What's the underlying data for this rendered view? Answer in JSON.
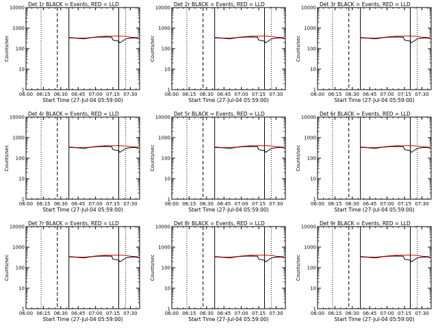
{
  "chart_data": [
    {
      "type": "line",
      "title": "Det 1r BLACK = Events, RED = LLD",
      "xlabel": "Start Time (27-Jul-04 05:59:00)",
      "ylabel": "Counts/sec",
      "y_scale": "log",
      "ylim": [
        1,
        10000
      ],
      "y_tick_labels": [
        "1",
        "10",
        "100",
        "1000",
        "10000"
      ],
      "x_tick_labels": [
        "06:00",
        "06:15",
        "06:30",
        "06:45",
        "07:00",
        "07:15",
        "07:30"
      ],
      "x_minutes": [
        0,
        15,
        30,
        45,
        60,
        75,
        90
      ],
      "xlim_minutes": [
        0,
        98
      ],
      "vertical_lines": [
        {
          "style": "dotted",
          "minute": 13
        },
        {
          "style": "dashed",
          "minute": 27
        },
        {
          "style": "solid",
          "minute": 37
        },
        {
          "style": "solid",
          "minute": 80
        },
        {
          "style": "dotted",
          "minute": 86
        }
      ],
      "series": [
        {
          "color": "#000000",
          "x_minutes": [
            37,
            43,
            50,
            56,
            62,
            68,
            74,
            75,
            80,
            81,
            86,
            90,
            94,
            97
          ],
          "values": [
            330,
            320,
            300,
            340,
            360,
            370,
            360,
            260,
            230,
            190,
            300,
            320,
            330,
            310
          ]
        },
        {
          "color": "#cc0000",
          "x_minutes": [
            37,
            43,
            50,
            56,
            62,
            68,
            74,
            80,
            86,
            90,
            94,
            97
          ],
          "values": [
            350,
            330,
            320,
            350,
            380,
            400,
            400,
            410,
            390,
            360,
            350,
            340
          ]
        }
      ]
    },
    {
      "type": "line",
      "title": "Det 2r BLACK = Events, RED = LLD",
      "xlabel": "Start Time (27-Jul-04 05:59:00)",
      "ylabel": "Counts/sec",
      "y_scale": "log",
      "ylim": [
        1,
        10000
      ],
      "y_tick_labels": [
        "1",
        "10",
        "100",
        "1000",
        "10000"
      ],
      "x_tick_labels": [
        "06:00",
        "06:15",
        "06:30",
        "06:45",
        "07:00",
        "07:15",
        "07:30"
      ],
      "x_minutes": [
        0,
        15,
        30,
        45,
        60,
        75,
        90
      ],
      "xlim_minutes": [
        0,
        98
      ],
      "vertical_lines": [
        {
          "style": "dotted",
          "minute": 13
        },
        {
          "style": "dashed",
          "minute": 27
        },
        {
          "style": "solid",
          "minute": 37
        },
        {
          "style": "solid",
          "minute": 80
        },
        {
          "style": "dotted",
          "minute": 86
        }
      ],
      "series": [
        {
          "color": "#000000",
          "x_minutes": [
            37,
            43,
            50,
            56,
            62,
            68,
            74,
            75,
            80,
            81,
            86,
            90,
            94,
            97
          ],
          "values": [
            330,
            320,
            300,
            340,
            360,
            370,
            360,
            260,
            230,
            190,
            300,
            320,
            330,
            310
          ]
        },
        {
          "color": "#cc0000",
          "x_minutes": [
            37,
            43,
            50,
            56,
            62,
            68,
            74,
            80,
            86,
            90,
            94,
            97
          ],
          "values": [
            350,
            330,
            320,
            350,
            380,
            400,
            400,
            410,
            390,
            360,
            350,
            340
          ]
        }
      ]
    },
    {
      "type": "line",
      "title": "Det 3r BLACK = Events, RED = LLD",
      "xlabel": "Start Time (27-Jul-04 05:59:00)",
      "ylabel": "Counts/sec",
      "y_scale": "log",
      "ylim": [
        1,
        10000
      ],
      "y_tick_labels": [
        "1",
        "10",
        "100",
        "1000",
        "10000"
      ],
      "x_tick_labels": [
        "06:00",
        "06:15",
        "06:30",
        "06:45",
        "07:00",
        "07:15",
        "07:30"
      ],
      "x_minutes": [
        0,
        15,
        30,
        45,
        60,
        75,
        90
      ],
      "xlim_minutes": [
        0,
        98
      ],
      "vertical_lines": [
        {
          "style": "dotted",
          "minute": 13
        },
        {
          "style": "dashed",
          "minute": 27
        },
        {
          "style": "solid",
          "minute": 37
        },
        {
          "style": "solid",
          "minute": 80
        },
        {
          "style": "dotted",
          "minute": 86
        }
      ],
      "series": [
        {
          "color": "#000000",
          "x_minutes": [
            37,
            43,
            50,
            56,
            62,
            68,
            74,
            75,
            80,
            81,
            86,
            90,
            94,
            97
          ],
          "values": [
            330,
            320,
            300,
            340,
            360,
            370,
            360,
            260,
            230,
            190,
            300,
            320,
            330,
            310
          ]
        },
        {
          "color": "#cc0000",
          "x_minutes": [
            37,
            43,
            50,
            56,
            62,
            68,
            74,
            80,
            86,
            90,
            94,
            97
          ],
          "values": [
            350,
            330,
            320,
            350,
            380,
            400,
            400,
            410,
            390,
            360,
            350,
            340
          ]
        }
      ]
    },
    {
      "type": "line",
      "title": "Det 4r BLACK = Events, RED = LLD",
      "xlabel": "Start Time (27-Jul-04 05:59:00)",
      "ylabel": "Counts/sec",
      "y_scale": "log",
      "ylim": [
        1,
        10000
      ],
      "y_tick_labels": [
        "1",
        "10",
        "100",
        "1000",
        "10000"
      ],
      "x_tick_labels": [
        "06:00",
        "06:15",
        "06:30",
        "06:45",
        "07:00",
        "07:15",
        "07:30"
      ],
      "x_minutes": [
        0,
        15,
        30,
        45,
        60,
        75,
        90
      ],
      "xlim_minutes": [
        0,
        98
      ],
      "vertical_lines": [
        {
          "style": "dotted",
          "minute": 13
        },
        {
          "style": "dashed",
          "minute": 27
        },
        {
          "style": "solid",
          "minute": 37
        },
        {
          "style": "solid",
          "minute": 80
        },
        {
          "style": "dotted",
          "minute": 86
        }
      ],
      "series": [
        {
          "color": "#000000",
          "x_minutes": [
            37,
            43,
            50,
            56,
            62,
            68,
            74,
            75,
            80,
            81,
            86,
            90,
            94,
            97
          ],
          "values": [
            330,
            320,
            300,
            340,
            360,
            370,
            360,
            260,
            230,
            190,
            300,
            320,
            330,
            310
          ]
        },
        {
          "color": "#cc0000",
          "x_minutes": [
            37,
            43,
            50,
            56,
            62,
            68,
            74,
            80,
            86,
            90,
            94,
            97
          ],
          "values": [
            350,
            330,
            320,
            350,
            380,
            400,
            400,
            410,
            390,
            360,
            350,
            340
          ]
        }
      ]
    },
    {
      "type": "line",
      "title": "Det 5r BLACK = Events, RED = LLD",
      "xlabel": "Start Time (27-Jul-04 05:59:00)",
      "ylabel": "Counts/sec",
      "y_scale": "log",
      "ylim": [
        1,
        10000
      ],
      "y_tick_labels": [
        "1",
        "10",
        "100",
        "1000",
        "10000"
      ],
      "x_tick_labels": [
        "06:00",
        "06:15",
        "06:30",
        "06:45",
        "07:00",
        "07:15",
        "07:30"
      ],
      "x_minutes": [
        0,
        15,
        30,
        45,
        60,
        75,
        90
      ],
      "xlim_minutes": [
        0,
        98
      ],
      "vertical_lines": [
        {
          "style": "dotted",
          "minute": 13
        },
        {
          "style": "dashed",
          "minute": 27
        },
        {
          "style": "solid",
          "minute": 37
        },
        {
          "style": "solid",
          "minute": 80
        },
        {
          "style": "dotted",
          "minute": 86
        }
      ],
      "series": [
        {
          "color": "#000000",
          "x_minutes": [
            37,
            43,
            50,
            56,
            62,
            68,
            74,
            75,
            80,
            81,
            86,
            90,
            94,
            97
          ],
          "values": [
            330,
            320,
            300,
            340,
            360,
            370,
            360,
            260,
            230,
            190,
            300,
            320,
            330,
            310
          ]
        },
        {
          "color": "#cc0000",
          "x_minutes": [
            37,
            43,
            50,
            56,
            62,
            68,
            74,
            80,
            86,
            90,
            94,
            97
          ],
          "values": [
            350,
            330,
            320,
            350,
            380,
            400,
            400,
            410,
            390,
            360,
            350,
            340
          ]
        }
      ]
    },
    {
      "type": "line",
      "title": "Det 6r BLACK = Events, RED = LLD",
      "xlabel": "Start Time (27-Jul-04 05:59:00)",
      "ylabel": "Counts/sec",
      "y_scale": "log",
      "ylim": [
        1,
        10000
      ],
      "y_tick_labels": [
        "1",
        "10",
        "100",
        "1000",
        "10000"
      ],
      "x_tick_labels": [
        "06:00",
        "06:15",
        "06:30",
        "06:45",
        "07:00",
        "07:15",
        "07:30"
      ],
      "x_minutes": [
        0,
        15,
        30,
        45,
        60,
        75,
        90
      ],
      "xlim_minutes": [
        0,
        98
      ],
      "vertical_lines": [
        {
          "style": "dotted",
          "minute": 13
        },
        {
          "style": "dashed",
          "minute": 27
        },
        {
          "style": "solid",
          "minute": 37
        },
        {
          "style": "solid",
          "minute": 80
        },
        {
          "style": "dotted",
          "minute": 86
        }
      ],
      "series": [
        {
          "color": "#000000",
          "x_minutes": [
            37,
            43,
            50,
            56,
            62,
            68,
            74,
            75,
            80,
            81,
            86,
            90,
            94,
            97
          ],
          "values": [
            330,
            320,
            300,
            340,
            360,
            370,
            360,
            260,
            230,
            190,
            300,
            320,
            330,
            310
          ]
        },
        {
          "color": "#cc0000",
          "x_minutes": [
            37,
            43,
            50,
            56,
            62,
            68,
            74,
            80,
            86,
            90,
            94,
            97
          ],
          "values": [
            350,
            330,
            320,
            350,
            380,
            400,
            400,
            410,
            390,
            360,
            350,
            340
          ]
        }
      ]
    },
    {
      "type": "line",
      "title": "Det 7r BLACK = Events, RED = LLD",
      "xlabel": "Start Time (27-Jul-04 05:59:00)",
      "ylabel": "Counts/sec",
      "y_scale": "log",
      "ylim": [
        1,
        10000
      ],
      "y_tick_labels": [
        "1",
        "10",
        "100",
        "1000",
        "10000"
      ],
      "x_tick_labels": [
        "06:00",
        "06:15",
        "06:30",
        "06:45",
        "07:00",
        "07:15",
        "07:30"
      ],
      "x_minutes": [
        0,
        15,
        30,
        45,
        60,
        75,
        90
      ],
      "xlim_minutes": [
        0,
        98
      ],
      "vertical_lines": [
        {
          "style": "dotted",
          "minute": 13
        },
        {
          "style": "dashed",
          "minute": 27
        },
        {
          "style": "solid",
          "minute": 37
        },
        {
          "style": "solid",
          "minute": 80
        },
        {
          "style": "dotted",
          "minute": 86
        }
      ],
      "series": [
        {
          "color": "#000000",
          "x_minutes": [
            37,
            43,
            50,
            56,
            62,
            68,
            74,
            75,
            80,
            81,
            86,
            90,
            94,
            97
          ],
          "values": [
            330,
            320,
            300,
            340,
            360,
            370,
            360,
            260,
            230,
            190,
            300,
            320,
            330,
            310
          ]
        },
        {
          "color": "#cc0000",
          "x_minutes": [
            37,
            43,
            50,
            56,
            62,
            68,
            74,
            80,
            86,
            90,
            94,
            97
          ],
          "values": [
            350,
            330,
            320,
            350,
            380,
            400,
            400,
            410,
            390,
            360,
            350,
            340
          ]
        }
      ]
    },
    {
      "type": "line",
      "title": "Det 8r BLACK = Events, RED = LLD",
      "xlabel": "Start Time (27-Jul-04 05:59:00)",
      "ylabel": "Counts/sec",
      "y_scale": "log",
      "ylim": [
        1,
        10000
      ],
      "y_tick_labels": [
        "1",
        "10",
        "100",
        "1000",
        "10000"
      ],
      "x_tick_labels": [
        "06:00",
        "06:15",
        "06:30",
        "06:45",
        "07:00",
        "07:15",
        "07:30"
      ],
      "x_minutes": [
        0,
        15,
        30,
        45,
        60,
        75,
        90
      ],
      "xlim_minutes": [
        0,
        98
      ],
      "vertical_lines": [
        {
          "style": "dotted",
          "minute": 13
        },
        {
          "style": "dashed",
          "minute": 27
        },
        {
          "style": "solid",
          "minute": 37
        },
        {
          "style": "solid",
          "minute": 80
        },
        {
          "style": "dotted",
          "minute": 86
        }
      ],
      "series": [
        {
          "color": "#000000",
          "x_minutes": [
            37,
            43,
            50,
            56,
            62,
            68,
            74,
            75,
            80,
            81,
            86,
            90,
            94,
            97
          ],
          "values": [
            330,
            320,
            300,
            340,
            360,
            370,
            360,
            260,
            230,
            190,
            300,
            320,
            330,
            310
          ]
        },
        {
          "color": "#cc0000",
          "x_minutes": [
            37,
            43,
            50,
            56,
            62,
            68,
            74,
            80,
            86,
            90,
            94,
            97
          ],
          "values": [
            350,
            330,
            320,
            350,
            380,
            400,
            400,
            410,
            390,
            360,
            350,
            340
          ]
        }
      ]
    },
    {
      "type": "line",
      "title": "Det 9r BLACK = Events, RED = LLD",
      "xlabel": "Start Time (27-Jul-04 05:59:00)",
      "ylabel": "Counts/sec",
      "y_scale": "log",
      "ylim": [
        1,
        10000
      ],
      "y_tick_labels": [
        "1",
        "10",
        "100",
        "1000",
        "10000"
      ],
      "x_tick_labels": [
        "06:00",
        "06:15",
        "06:30",
        "06:45",
        "07:00",
        "07:15",
        "07:30"
      ],
      "x_minutes": [
        0,
        15,
        30,
        45,
        60,
        75,
        90
      ],
      "xlim_minutes": [
        0,
        98
      ],
      "vertical_lines": [
        {
          "style": "dotted",
          "minute": 13
        },
        {
          "style": "dashed",
          "minute": 27
        },
        {
          "style": "solid",
          "minute": 37
        },
        {
          "style": "solid",
          "minute": 80
        },
        {
          "style": "dotted",
          "minute": 86
        }
      ],
      "series": [
        {
          "color": "#000000",
          "x_minutes": [
            37,
            43,
            50,
            56,
            62,
            68,
            74,
            75,
            80,
            81,
            86,
            90,
            94,
            97
          ],
          "values": [
            330,
            320,
            300,
            340,
            360,
            370,
            360,
            260,
            230,
            190,
            300,
            320,
            330,
            310
          ]
        },
        {
          "color": "#cc0000",
          "x_minutes": [
            37,
            43,
            50,
            56,
            62,
            68,
            74,
            80,
            86,
            90,
            94,
            97
          ],
          "values": [
            350,
            330,
            320,
            350,
            380,
            400,
            400,
            410,
            390,
            360,
            350,
            340
          ]
        }
      ]
    }
  ]
}
